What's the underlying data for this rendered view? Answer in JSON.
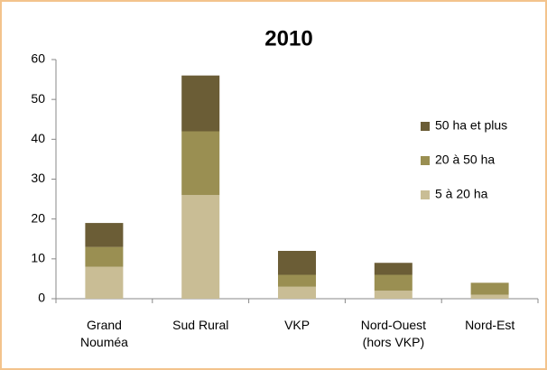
{
  "chart_data": {
    "type": "stacked_bar",
    "title": "2010",
    "categories": [
      "Grand\nNouméa",
      "Sud Rural",
      "VKP",
      "Nord-Ouest\n(hors VKP)",
      "Nord-Est"
    ],
    "series": [
      {
        "name": "5 à 20 ha",
        "color": "#c9bd95",
        "values": [
          8,
          26,
          3,
          2,
          1
        ]
      },
      {
        "name": "20 à 50 ha",
        "color": "#9a8f52",
        "values": [
          5,
          16,
          3,
          4,
          3
        ]
      },
      {
        "name": "50 ha et plus",
        "color": "#6b5d36",
        "values": [
          6,
          14,
          6,
          3,
          0
        ]
      }
    ],
    "ylim": [
      0,
      60
    ],
    "yticks": [
      0,
      10,
      20,
      30,
      40,
      50,
      60
    ],
    "grid": false,
    "legend": "right"
  }
}
